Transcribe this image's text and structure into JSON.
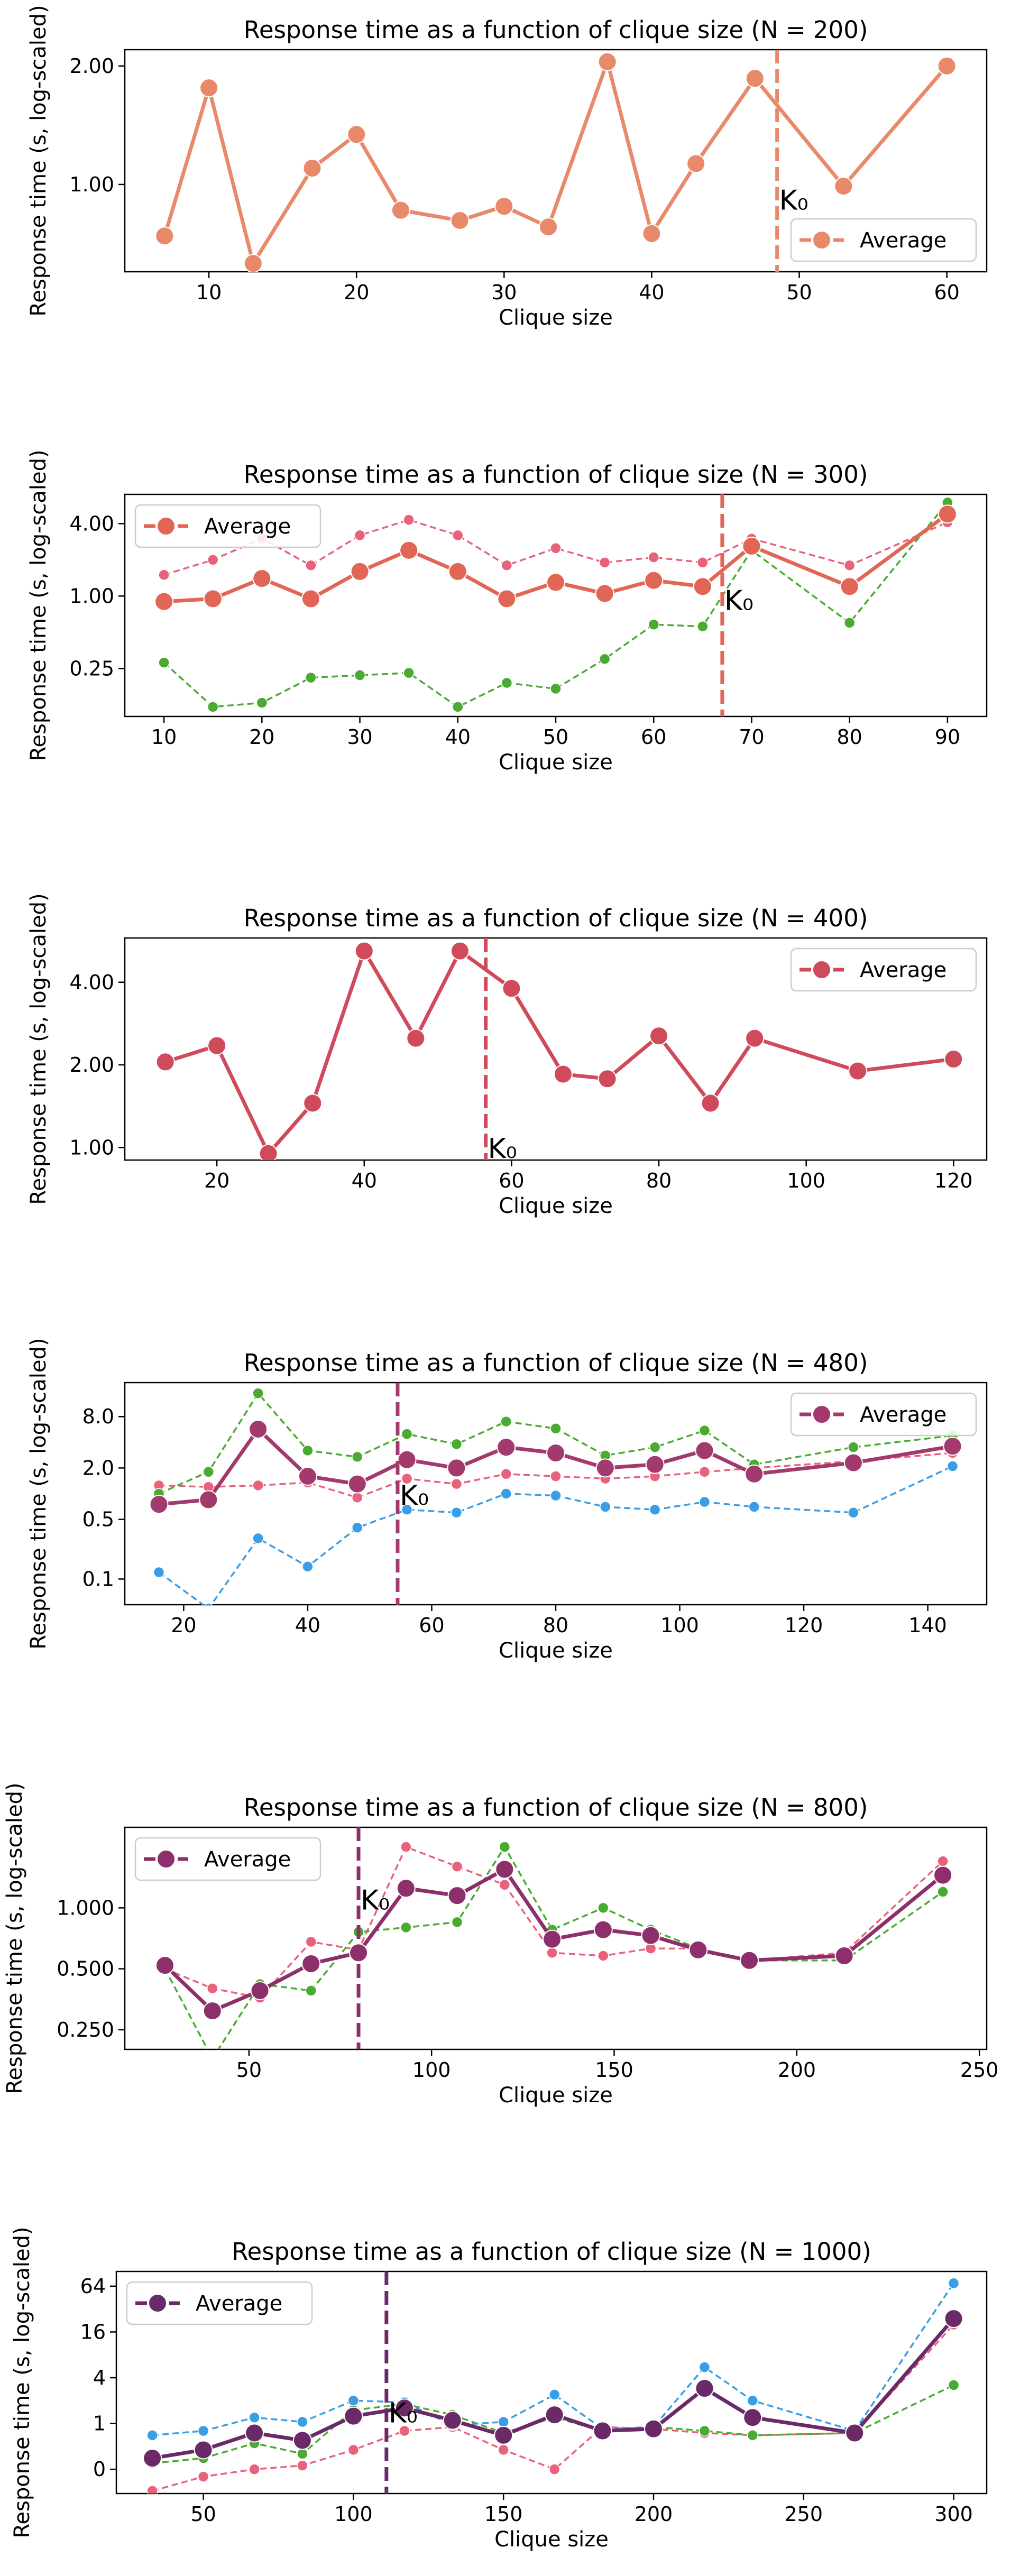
{
  "chart_data": [
    {
      "type": "line",
      "title": "Response time as a function of clique size (N = 200)",
      "xlabel": "Clique size",
      "ylabel": "Response time (s, log-scaled)",
      "yscale": "log",
      "xlim": [
        4.3,
        62.7
      ],
      "ylim": [
        0.6,
        2.2
      ],
      "xticks": [
        10,
        20,
        30,
        40,
        50,
        60
      ],
      "yticks": [
        1.0,
        2.0
      ],
      "ytick_labels": [
        "1.00",
        "2.00"
      ],
      "legend": {
        "entries": [
          "Average"
        ],
        "position": "lower-right"
      },
      "grid": false,
      "k0": 48.5,
      "k0_label": "K₀",
      "x": [
        7,
        10,
        13,
        17,
        20,
        23,
        27,
        30,
        33,
        37,
        40,
        43,
        47,
        53,
        60
      ],
      "series": [
        {
          "name": "Average",
          "color": "#e8896a",
          "style": "solid",
          "values": [
            0.74,
            1.76,
            0.63,
            1.1,
            1.34,
            0.86,
            0.81,
            0.88,
            0.78,
            2.05,
            0.75,
            1.13,
            1.86,
            0.99,
            2.0
          ]
        }
      ]
    },
    {
      "type": "line",
      "title": "Response time as a function of clique size (N = 300)",
      "xlabel": "Clique size",
      "ylabel": "Response time (s, log-scaled)",
      "yscale": "log",
      "xlim": [
        6,
        94
      ],
      "ylim": [
        0.1,
        7.0
      ],
      "xticks": [
        10,
        20,
        30,
        40,
        50,
        60,
        70,
        80,
        90
      ],
      "yticks": [
        0.25,
        1.0,
        4.0
      ],
      "ytick_labels": [
        "0.25",
        "1.00",
        "4.00"
      ],
      "legend": {
        "entries": [
          "Average"
        ],
        "position": "top-left"
      },
      "grid": false,
      "k0": 67,
      "k0_label": "K₀",
      "x": [
        10,
        15,
        20,
        25,
        30,
        35,
        40,
        45,
        50,
        55,
        60,
        65,
        70,
        80,
        90
      ],
      "series": [
        {
          "name": "Average",
          "color": "#e16655",
          "style": "solid",
          "values": [
            0.9,
            0.95,
            1.4,
            0.95,
            1.6,
            2.4,
            1.6,
            0.95,
            1.3,
            1.05,
            1.35,
            1.2,
            2.6,
            1.2,
            4.8
          ]
        },
        {
          "color": "#e8627c",
          "style": "dashed",
          "values": [
            1.5,
            2.0,
            3.0,
            1.8,
            3.2,
            4.3,
            3.2,
            1.8,
            2.5,
            1.9,
            2.1,
            1.9,
            3.0,
            1.8,
            4.1
          ]
        },
        {
          "color": "#4aab32",
          "style": "dashed",
          "values": [
            0.28,
            0.12,
            0.13,
            0.21,
            0.22,
            0.23,
            0.12,
            0.19,
            0.17,
            0.3,
            0.58,
            0.56,
            2.4,
            0.6,
            6.0
          ]
        }
      ]
    },
    {
      "type": "line",
      "title": "Response time as a function of clique size (N = 400)",
      "xlabel": "Clique size",
      "ylabel": "Response time (s, log-scaled)",
      "yscale": "log",
      "xlim": [
        7.5,
        124.5
      ],
      "ylim": [
        0.9,
        5.8
      ],
      "xticks": [
        20,
        40,
        60,
        80,
        100,
        120
      ],
      "yticks": [
        1.0,
        2.0,
        4.0
      ],
      "ytick_labels": [
        "1.00",
        "2.00",
        "4.00"
      ],
      "legend": {
        "entries": [
          "Average"
        ],
        "position": "top-right"
      },
      "grid": false,
      "k0": 56.5,
      "k0_label": "K₀",
      "x": [
        13,
        20,
        27,
        33,
        40,
        47,
        53,
        60,
        67,
        73,
        80,
        87,
        93,
        107,
        120
      ],
      "series": [
        {
          "name": "Average",
          "color": "#cf4a5b",
          "style": "solid",
          "values": [
            2.05,
            2.35,
            0.95,
            1.45,
            5.2,
            2.5,
            5.2,
            3.8,
            1.85,
            1.78,
            2.55,
            1.45,
            2.5,
            1.9,
            2.1
          ]
        }
      ]
    },
    {
      "type": "line",
      "title": "Response time as a function of clique size (N = 480)",
      "xlabel": "Clique size",
      "ylabel": "Response time (s, log-scaled)",
      "yscale": "log",
      "xlim": [
        10.5,
        149.5
      ],
      "ylim": [
        0.05,
        20
      ],
      "xticks": [
        20,
        40,
        60,
        80,
        100,
        120,
        140
      ],
      "yticks": [
        0.1,
        0.5,
        2.0,
        8.0
      ],
      "ytick_labels": [
        "0.1",
        "0.5",
        "2.0",
        "8.0"
      ],
      "legend": {
        "entries": [
          "Average"
        ],
        "position": "top-right"
      },
      "grid": false,
      "k0": 54.5,
      "k0_label": "K₀",
      "x": [
        16,
        24,
        32,
        40,
        48,
        56,
        64,
        72,
        80,
        88,
        96,
        104,
        112,
        128,
        144
      ],
      "series": [
        {
          "name": "Average",
          "color": "#a23a6e",
          "style": "solid",
          "values": [
            0.75,
            0.85,
            5.7,
            1.6,
            1.3,
            2.5,
            2.0,
            3.5,
            3.0,
            2.0,
            2.2,
            3.2,
            1.7,
            2.3,
            3.6
          ]
        },
        {
          "color": "#e8627c",
          "style": "dashed",
          "values": [
            1.25,
            1.2,
            1.25,
            1.35,
            0.9,
            1.5,
            1.3,
            1.7,
            1.6,
            1.5,
            1.6,
            1.8,
            2.0,
            2.4,
            3.0
          ]
        },
        {
          "color": "#4aab32",
          "style": "dashed",
          "values": [
            1.0,
            1.8,
            15.0,
            3.2,
            2.7,
            5.0,
            3.8,
            7.0,
            5.8,
            2.8,
            3.5,
            5.5,
            2.2,
            3.5,
            4.8
          ]
        },
        {
          "color": "#3a9ee5",
          "style": "dashed",
          "values": [
            0.12,
            0.045,
            0.3,
            0.14,
            0.4,
            0.65,
            0.6,
            1.0,
            0.95,
            0.7,
            0.65,
            0.8,
            0.7,
            0.6,
            2.1
          ]
        }
      ]
    },
    {
      "type": "line",
      "title": "Response time as a function of clique size (N = 800)",
      "xlabel": "Clique size",
      "ylabel": "Response time (s, log-scaled)",
      "yscale": "log",
      "xlim": [
        16,
        252
      ],
      "ylim": [
        0.2,
        2.5
      ],
      "xticks": [
        50,
        100,
        150,
        200,
        250
      ],
      "yticks": [
        0.25,
        0.5,
        1.0
      ],
      "ytick_labels": [
        "0.250",
        "0.500",
        "1.000"
      ],
      "legend": {
        "entries": [
          "Average"
        ],
        "position": "top-left"
      },
      "grid": false,
      "k0": 80,
      "k0_label": "K₀",
      "x": [
        27,
        40,
        53,
        67,
        80,
        93,
        107,
        120,
        133,
        147,
        160,
        173,
        187,
        213,
        240
      ],
      "series": [
        {
          "name": "Average",
          "color": "#8c2f6b",
          "style": "solid",
          "values": [
            0.52,
            0.31,
            0.39,
            0.53,
            0.6,
            1.25,
            1.15,
            1.55,
            0.7,
            0.78,
            0.73,
            0.62,
            0.55,
            0.58,
            1.45
          ]
        },
        {
          "color": "#e8627c",
          "style": "dashed",
          "values": [
            0.5,
            0.4,
            0.36,
            0.68,
            0.62,
            2.0,
            1.6,
            1.3,
            0.6,
            0.58,
            0.63,
            0.63,
            0.55,
            0.6,
            1.7
          ]
        },
        {
          "color": "#4aab32",
          "style": "dashed",
          "values": [
            0.5,
            0.18,
            0.42,
            0.39,
            0.76,
            0.8,
            0.85,
            2.0,
            0.78,
            1.0,
            0.78,
            0.63,
            0.55,
            0.55,
            1.2
          ]
        }
      ]
    },
    {
      "type": "line",
      "title": "Response time as a function of clique size (N = 1000)",
      "xlabel": "Clique size",
      "ylabel": "Response time (s, log-scaled)",
      "yscale": "log",
      "xlim": [
        21,
        311
      ],
      "ylim": [
        0.12,
        100
      ],
      "xticks": [
        50,
        100,
        150,
        200,
        250,
        300
      ],
      "yticks": [
        0.25,
        1,
        4,
        16,
        64
      ],
      "ytick_labels": [
        "0",
        "1",
        "4",
        "16",
        "64"
      ],
      "legend": {
        "entries": [
          "Average"
        ],
        "position": "top-left"
      },
      "grid": false,
      "k0": 111,
      "k0_label": "K₀",
      "x": [
        33,
        50,
        67,
        83,
        100,
        117,
        133,
        150,
        167,
        183,
        200,
        217,
        233,
        267,
        300
      ],
      "series": [
        {
          "name": "Average",
          "color": "#6a2a68",
          "style": "solid",
          "values": [
            0.35,
            0.45,
            0.75,
            0.6,
            1.25,
            1.6,
            1.1,
            0.7,
            1.3,
            0.8,
            0.85,
            2.9,
            1.2,
            0.75,
            24.0
          ]
        },
        {
          "color": "#e8627c",
          "style": "dashed",
          "values": [
            0.13,
            0.2,
            0.25,
            0.28,
            0.45,
            0.8,
            0.9,
            0.45,
            0.25,
            0.9,
            0.85,
            0.75,
            0.7,
            0.75,
            20.0
          ]
        },
        {
          "color": "#4aab32",
          "style": "dashed",
          "values": [
            0.3,
            0.35,
            0.55,
            0.4,
            1.5,
            1.8,
            1.3,
            0.75,
            1.2,
            0.8,
            0.9,
            0.8,
            0.7,
            0.75,
            3.2
          ]
        },
        {
          "color": "#3a9ee5",
          "style": "dashed",
          "values": [
            0.7,
            0.8,
            1.2,
            1.05,
            2.0,
            1.9,
            0.95,
            1.05,
            2.4,
            0.85,
            0.9,
            5.5,
            2.0,
            0.8,
            70.0
          ]
        }
      ]
    }
  ]
}
